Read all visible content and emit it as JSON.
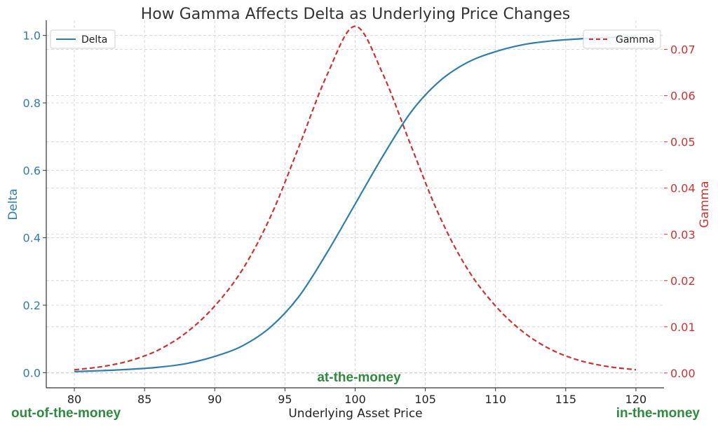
{
  "chart_data": {
    "type": "line",
    "title": "How Gamma Affects Delta as Underlying Price Changes",
    "xlabel": "Underlying Asset Price",
    "xlim": [
      78,
      122
    ],
    "xticks": [
      80,
      85,
      90,
      95,
      100,
      105,
      110,
      115,
      120
    ],
    "grid": true,
    "y_left": {
      "label": "Delta",
      "ylim": [
        -0.045,
        1.045
      ],
      "ticks": [
        0.0,
        0.2,
        0.4,
        0.6,
        0.8,
        1.0
      ],
      "color": "#2e7dab"
    },
    "y_right": {
      "label": "Gamma",
      "ylim": [
        -0.0032,
        0.0763
      ],
      "ticks": [
        0.0,
        0.01,
        0.02,
        0.03,
        0.04,
        0.05,
        0.06,
        0.07
      ],
      "color": "#cc3333"
    },
    "x": [
      80,
      82,
      84,
      86,
      88,
      90,
      92,
      94,
      96,
      98,
      100,
      102,
      104,
      106,
      108,
      110,
      112,
      114,
      116,
      118,
      120
    ],
    "series": [
      {
        "name": "Delta",
        "axis": "left",
        "color": "#2e7dab",
        "style": "solid",
        "legend_position": "top-left",
        "values": [
          0.003,
          0.006,
          0.01,
          0.016,
          0.027,
          0.048,
          0.08,
          0.136,
          0.226,
          0.356,
          0.5,
          0.644,
          0.774,
          0.864,
          0.92,
          0.952,
          0.973,
          0.984,
          0.99,
          0.994,
          0.997
        ]
      },
      {
        "name": "Gamma",
        "axis": "right",
        "color": "#cc3333",
        "style": "dashed",
        "legend_position": "top-right",
        "values": [
          0.0007,
          0.0014,
          0.0027,
          0.005,
          0.0088,
          0.0145,
          0.0225,
          0.034,
          0.049,
          0.0645,
          0.075,
          0.0645,
          0.049,
          0.034,
          0.0225,
          0.0145,
          0.0088,
          0.005,
          0.0027,
          0.0014,
          0.0007
        ]
      }
    ],
    "annotations": [
      {
        "text": "out-of-the-money",
        "color": "#2e8b3e",
        "position": "bottom-left"
      },
      {
        "text": "at-the-money",
        "color": "#2e8b3e",
        "position": "x=100, near bottom"
      },
      {
        "text": "in-the-money",
        "color": "#2e8b3e",
        "position": "bottom-right"
      }
    ]
  }
}
